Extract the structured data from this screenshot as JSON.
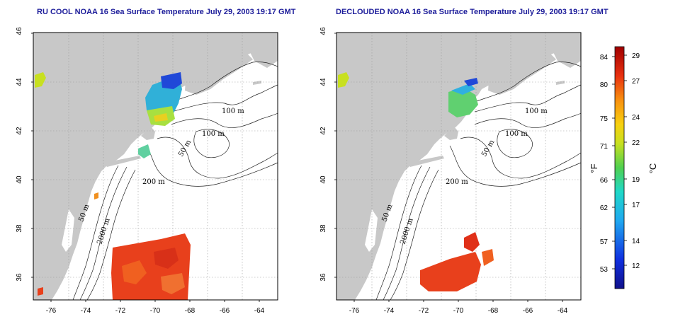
{
  "panels": [
    {
      "id": "left",
      "title": "RU COOL NOAA 16 Sea Surface Temperature July 29, 2003 19:17 GMT",
      "contour_labels": [
        "100 m",
        "100 m",
        "50 m",
        "200 m",
        "50 m",
        "2000 m"
      ]
    },
    {
      "id": "right",
      "title": "DECLOUDED NOAA 16 Sea Surface Temperature July 29, 2003 19:17 GMT",
      "contour_labels": [
        "100 m",
        "100 m",
        "50 m",
        "200 m",
        "50 m",
        "2000 m"
      ]
    }
  ],
  "axes": {
    "x_ticks": [
      "-76",
      "-74",
      "-72",
      "-70",
      "-68",
      "-66",
      "-64"
    ],
    "y_ticks": [
      "46",
      "44",
      "42",
      "40",
      "38",
      "36"
    ]
  },
  "colorbar": {
    "fahrenheit_ticks": [
      "84",
      "80",
      "75",
      "71",
      "66",
      "62",
      "57",
      "53"
    ],
    "celsius_ticks": [
      "29",
      "27",
      "24",
      "22",
      "19",
      "17",
      "14",
      "12"
    ],
    "fahrenheit_unit": "°F",
    "celsius_unit": "°C"
  },
  "colors": {
    "land": "#c8c8c8",
    "title": "#1c1c9a",
    "warm_water": "#e8401c",
    "cool_water": "#3060e0"
  }
}
